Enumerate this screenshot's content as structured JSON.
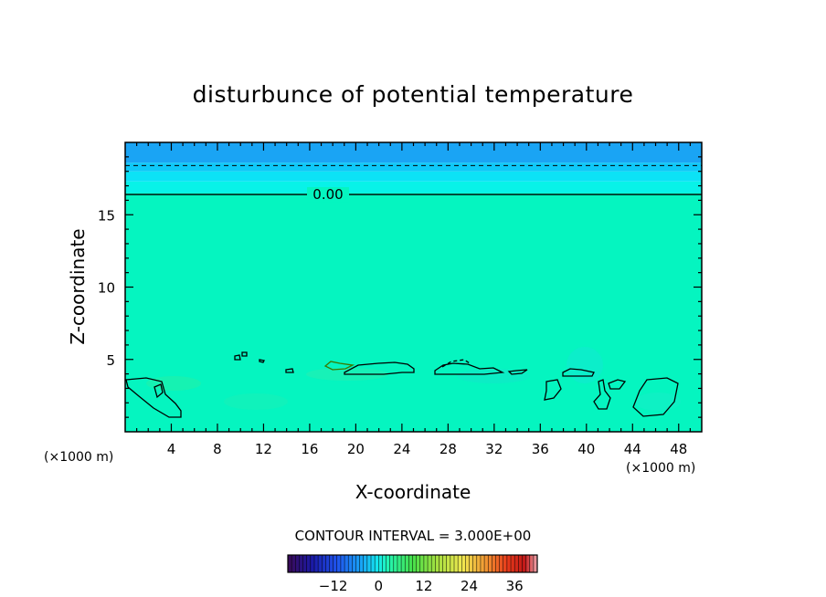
{
  "chart_data": {
    "type": "heatmap",
    "title": "disturbunce of potential temperature",
    "xlabel": "X-coordinate",
    "ylabel": "Z-coordinate",
    "x_unit": "(×1000 m)",
    "z_unit": "(×1000 m)",
    "xlim": [
      0,
      50
    ],
    "ylim": [
      0,
      20
    ],
    "x_ticks": [
      "4",
      "8",
      "12",
      "16",
      "20",
      "24",
      "28",
      "32",
      "36",
      "40",
      "44",
      "48"
    ],
    "y_ticks": [
      "5",
      "10",
      "15"
    ],
    "contour_interval": "CONTOUR INTERVAL = 3.000E+00",
    "contour_labels": [
      "0.00"
    ],
    "colorbar": {
      "min": -24,
      "max": 42,
      "ticks": [
        "−12",
        "0",
        "12",
        "24",
        "36"
      ]
    },
    "bands_z": [
      {
        "z0": 0,
        "z1": 16.5,
        "value": 0
      },
      {
        "z0": 16.5,
        "z1": 17.3,
        "value": -3
      },
      {
        "z0": 17.3,
        "z1": 18.0,
        "value": -5
      },
      {
        "z0": 18.0,
        "z1": 18.6,
        "value": -7
      },
      {
        "z0": 18.6,
        "z1": 20,
        "value": -9
      }
    ],
    "contours": [
      {
        "z": 16.4,
        "style": "solid"
      },
      {
        "z": 18.4,
        "style": "dashed"
      }
    ]
  }
}
